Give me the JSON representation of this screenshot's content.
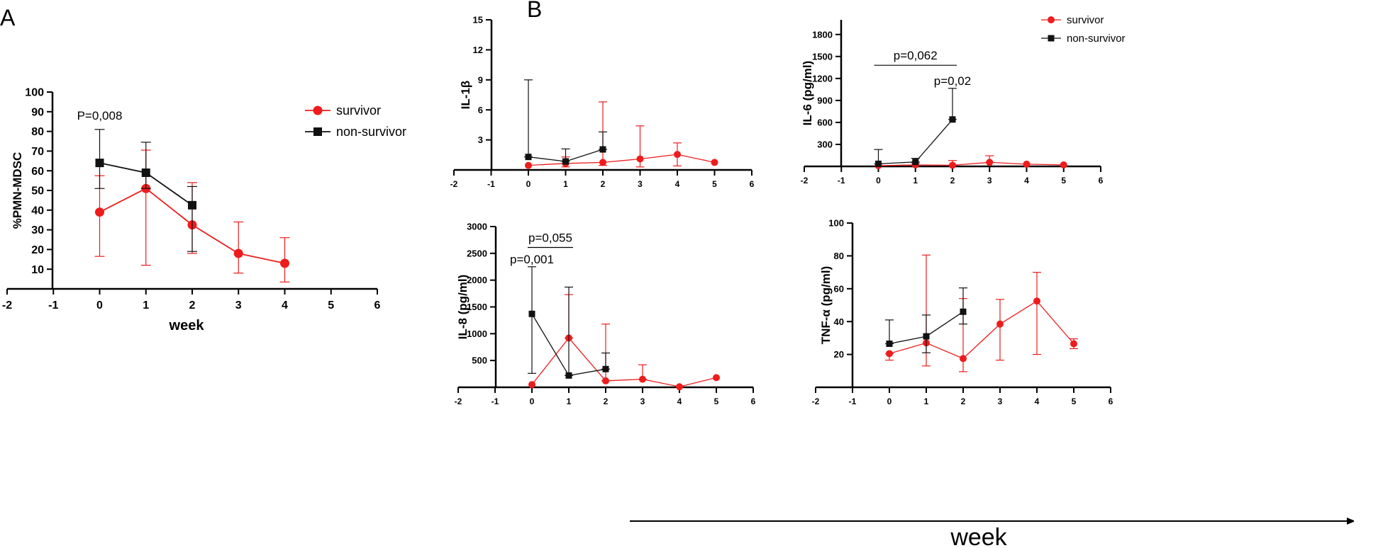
{
  "panel_labels": {
    "a": "A",
    "b": "B"
  },
  "colors": {
    "survivor": "#ee1c1c",
    "non_survivor": "#111111",
    "axis": "#000000"
  },
  "bottom_week_label": "week",
  "chart_data": [
    {
      "id": "pmn",
      "type": "line",
      "ylabel": "%PMN-MDSC",
      "xlabel": "week",
      "xlim": [
        -2,
        6
      ],
      "ylim": [
        0,
        100
      ],
      "xticks": [
        -2,
        -1,
        0,
        1,
        2,
        3,
        4,
        5,
        6
      ],
      "yticks": [
        10,
        20,
        30,
        40,
        50,
        60,
        70,
        80,
        90,
        100
      ],
      "legend": {
        "placement": "top-right",
        "entries": [
          "survivor",
          "non-survivor"
        ]
      },
      "series": [
        {
          "name": "survivor",
          "x": [
            0,
            1,
            2,
            3,
            4
          ],
          "y": [
            39,
            51,
            32.5,
            18,
            13
          ],
          "err_lo": [
            16.5,
            12,
            18,
            8,
            3.5
          ],
          "err_hi": [
            57.5,
            70.5,
            54,
            34,
            26
          ]
        },
        {
          "name": "non-survivor",
          "x": [
            0,
            1,
            2
          ],
          "y": [
            64,
            59,
            42.5
          ],
          "err_lo": [
            51,
            51,
            19
          ],
          "err_hi": [
            81,
            74.5,
            52
          ]
        }
      ],
      "annotations": [
        {
          "text": "P=0,008",
          "x": 0,
          "y": 86
        }
      ]
    },
    {
      "id": "il1",
      "type": "line",
      "ylabel": "IL-1β",
      "xlim": [
        -2,
        6
      ],
      "ylim": [
        0,
        15
      ],
      "xticks": [
        -2,
        -1,
        0,
        1,
        2,
        3,
        4,
        5,
        6
      ],
      "yticks": [
        3,
        6,
        9,
        12,
        15
      ],
      "series": [
        {
          "name": "survivor",
          "x": [
            0,
            1,
            2,
            3,
            4,
            5
          ],
          "y": [
            0.45,
            0.65,
            0.75,
            1.1,
            1.55,
            0.75
          ],
          "err_lo": [
            0.45,
            0.3,
            0.45,
            0.3,
            0.4,
            0.75
          ],
          "err_hi": [
            0.45,
            1.3,
            6.8,
            4.4,
            2.7,
            0.75
          ]
        },
        {
          "name": "non-survivor",
          "x": [
            0,
            1,
            2
          ],
          "y": [
            1.3,
            0.85,
            2.05
          ],
          "err_lo": [
            1.3,
            0.85,
            2.05
          ],
          "err_hi": [
            9.0,
            2.1,
            3.8
          ]
        }
      ],
      "annotations": []
    },
    {
      "id": "il6",
      "type": "line",
      "ylabel": "IL-6 (pg/ml)",
      "xlim": [
        -2,
        6
      ],
      "ylim": [
        0,
        2000
      ],
      "xticks": [
        -2,
        -1,
        0,
        1,
        2,
        3,
        4,
        5,
        6
      ],
      "yticks": [
        300,
        600,
        900,
        1200,
        1500,
        1800
      ],
      "legend": {
        "placement": "top-right",
        "entries": [
          "survivor",
          "non-survivor"
        ]
      },
      "series": [
        {
          "name": "survivor",
          "x": [
            0,
            1,
            2,
            3,
            4,
            5
          ],
          "y": [
            10,
            20,
            15,
            55,
            30,
            20
          ],
          "err_lo": [
            10,
            20,
            15,
            55,
            30,
            20
          ],
          "err_hi": [
            10,
            45,
            80,
            145,
            30,
            20
          ]
        },
        {
          "name": "non-survivor",
          "x": [
            0,
            1,
            2
          ],
          "y": [
            35,
            60,
            640
          ],
          "err_lo": [
            35,
            60,
            640
          ],
          "err_hi": [
            230,
            110,
            1065
          ]
        }
      ],
      "brackets": [
        {
          "x1": 0,
          "x2": 2,
          "y": 1380,
          "text": "p=0,062"
        }
      ],
      "annotations": [
        {
          "text": "p=0,02",
          "x": 2,
          "y": 1110
        }
      ]
    },
    {
      "id": "il8",
      "type": "line",
      "ylabel": "IL-8 (pg/ml)",
      "xlim": [
        -2,
        6
      ],
      "ylim": [
        0,
        3000
      ],
      "xticks": [
        -2,
        -1,
        0,
        1,
        2,
        3,
        4,
        5,
        6
      ],
      "yticks": [
        500,
        1000,
        1500,
        2000,
        2500,
        3000
      ],
      "series": [
        {
          "name": "survivor",
          "x": [
            0,
            1,
            2,
            3,
            4,
            5
          ],
          "y": [
            50,
            920,
            120,
            150,
            10,
            180
          ],
          "err_lo": [
            50,
            920,
            120,
            150,
            10,
            180
          ],
          "err_hi": [
            50,
            1730,
            1180,
            420,
            10,
            180
          ]
        },
        {
          "name": "non-survivor",
          "x": [
            0,
            1,
            2
          ],
          "y": [
            1370,
            220,
            340
          ],
          "err_lo": [
            260,
            220,
            340
          ],
          "err_hi": [
            2250,
            1870,
            640
          ]
        }
      ],
      "brackets": [
        {
          "x1": 0,
          "x2": 1,
          "y": 2610,
          "text": "p=0,055"
        }
      ],
      "annotations": [
        {
          "text": "p=0,001",
          "x": 0,
          "y": 2310
        }
      ]
    },
    {
      "id": "tnf",
      "type": "line",
      "ylabel": "TNF-α (pg/ml)",
      "xlim": [
        -2,
        6
      ],
      "ylim": [
        0,
        100
      ],
      "xticks": [
        -2,
        -1,
        0,
        1,
        2,
        3,
        4,
        5,
        6
      ],
      "yticks": [
        20,
        40,
        60,
        80,
        100
      ],
      "series": [
        {
          "name": "survivor",
          "x": [
            0,
            1,
            2,
            3,
            4,
            5
          ],
          "y": [
            20.5,
            27,
            17.5,
            38.5,
            52.5,
            26.5
          ],
          "err_lo": [
            16.5,
            13,
            9.5,
            16.5,
            20,
            23.5
          ],
          "err_hi": [
            20.5,
            80.5,
            54,
            53.5,
            70,
            29.5
          ]
        },
        {
          "name": "non-survivor",
          "x": [
            0,
            1,
            2
          ],
          "y": [
            26.5,
            31,
            46
          ],
          "err_lo": [
            26.5,
            21,
            38.5
          ],
          "err_hi": [
            41,
            44,
            60.5
          ]
        }
      ],
      "annotations": []
    }
  ]
}
